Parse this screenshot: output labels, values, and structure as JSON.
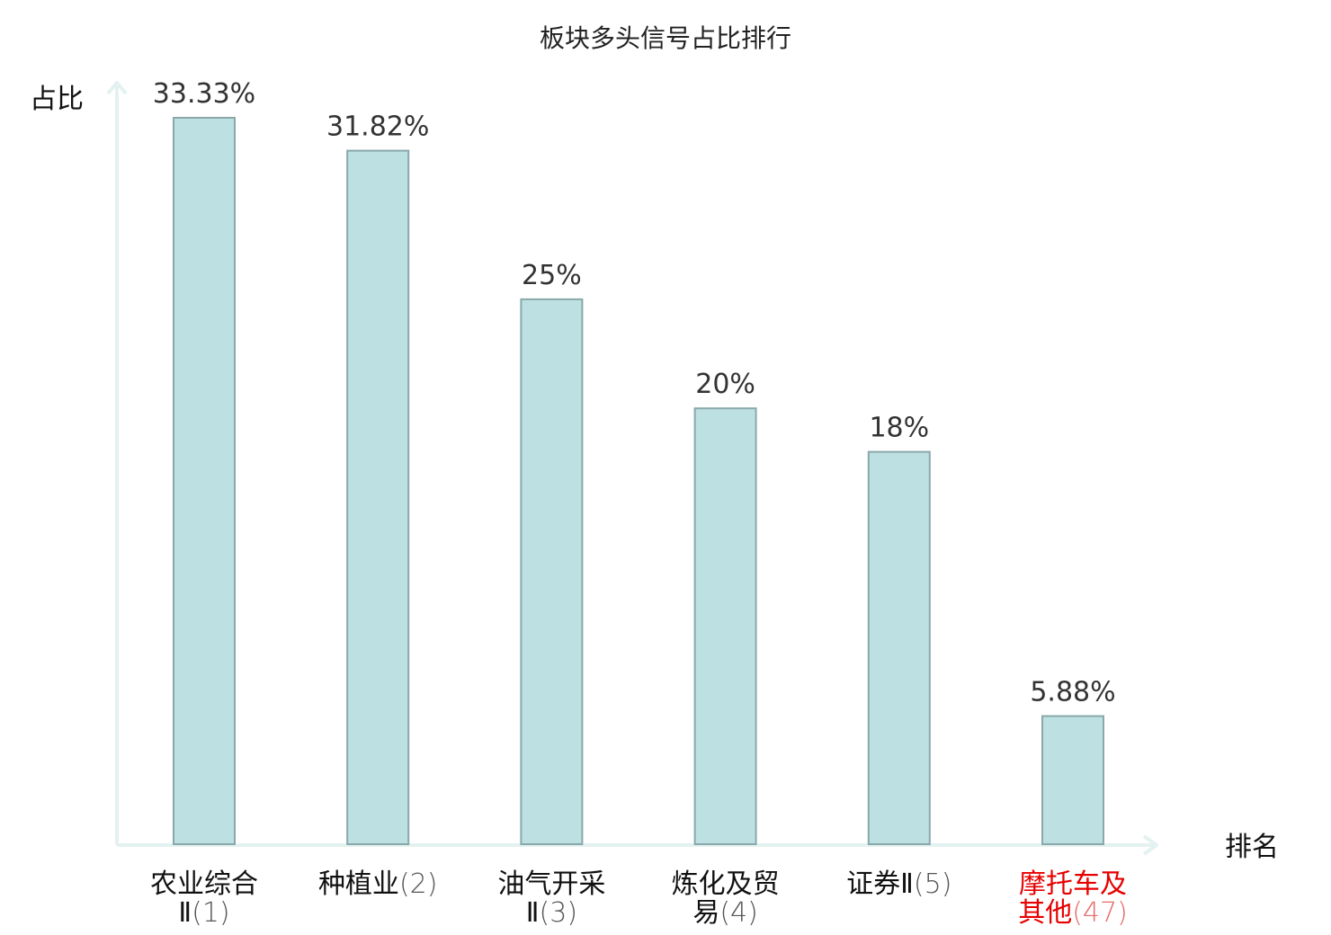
{
  "chart_data": {
    "type": "bar",
    "title": "板块多头信号占比排行",
    "xlabel": "排名",
    "ylabel": "占比",
    "ylim": [
      0,
      35
    ],
    "grid": false,
    "legend": "none",
    "categories": [
      {
        "lines": [
          "农业综合",
          "Ⅱ"
        ],
        "rank": "(1)",
        "highlight": false
      },
      {
        "lines": [
          "种植业"
        ],
        "rank": "(2)",
        "highlight": false
      },
      {
        "lines": [
          "油气开采",
          "Ⅱ"
        ],
        "rank": "(3)",
        "highlight": false
      },
      {
        "lines": [
          "炼化及贸",
          "易"
        ],
        "rank": "(4)",
        "highlight": false
      },
      {
        "lines": [
          "证券Ⅱ"
        ],
        "rank": "(5)",
        "highlight": false
      },
      {
        "lines": [
          "摩托车及",
          "其他"
        ],
        "rank": "(47)",
        "highlight": true
      }
    ],
    "values": [
      33.33,
      31.82,
      25,
      20,
      18,
      5.88
    ],
    "value_labels": [
      "33.33%",
      "31.82%",
      "25%",
      "20%",
      "18%",
      "5.88%"
    ],
    "colors": {
      "bar_fill": "#bde0e3",
      "bar_stroke": "#8aa8aa",
      "axis": "#e3f2f0",
      "highlight_text": "#e60000"
    }
  }
}
